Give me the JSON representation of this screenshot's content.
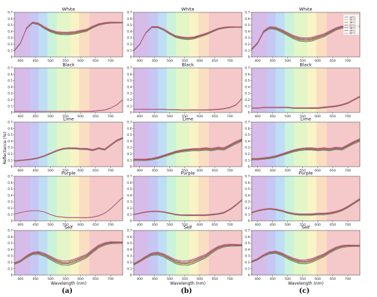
{
  "chart_data": {
    "type": "line",
    "ylabel": "Reflectance (%)",
    "xlabel": "Wavelength (nm)",
    "xlim": [
      380,
      740
    ],
    "ylim": [
      0,
      0.7
    ],
    "xticks": [
      400,
      450,
      500,
      550,
      600,
      650,
      700
    ],
    "xtick_labels": [
      "400",
      "450",
      "500",
      "550",
      "600",
      "650",
      "700"
    ],
    "yticks": [
      0,
      0.1,
      0.2,
      0.3,
      0.4,
      0.5,
      0.6,
      0.7
    ],
    "ytick_labels": [
      "0",
      "0.1",
      "0.2",
      "0.3",
      "0.4",
      "0.5",
      "0.6",
      "0.7"
    ],
    "legend": {
      "placement": "top-right of column (c) White panel",
      "entries": [
        "34°C",
        "35°C",
        "36°C",
        "37°C",
        "38°C",
        "39°C",
        "40°C"
      ]
    },
    "series_colors": [
      "#1f77b4",
      "#ff7f0e",
      "#2ca02c",
      "#d62728",
      "#9467bd",
      "#8c564b",
      "#e377c2"
    ],
    "column_captions": [
      "(a)",
      "(b)",
      "(c)"
    ],
    "panel_titles": [
      "White",
      "Black",
      "Lime",
      "Purple",
      "Self"
    ],
    "x_samples": [
      380,
      400,
      420,
      440,
      460,
      480,
      500,
      520,
      540,
      560,
      580,
      600,
      620,
      640,
      660,
      680,
      700,
      720,
      740
    ],
    "columns": [
      {
        "caption": "(a)",
        "panels": [
          {
            "title": "White",
            "base": [
              0.1,
              0.22,
              0.45,
              0.54,
              0.52,
              0.46,
              0.41,
              0.38,
              0.37,
              0.37,
              0.38,
              0.4,
              0.42,
              0.47,
              0.51,
              0.53,
              0.54,
              0.54,
              0.54
            ],
            "spread": 0.025,
            "mode": "dip"
          },
          {
            "title": "Black",
            "base": [
              0.02,
              0.02,
              0.02,
              0.02,
              0.02,
              0.02,
              0.02,
              0.02,
              0.02,
              0.02,
              0.02,
              0.02,
              0.02,
              0.02,
              0.03,
              0.04,
              0.07,
              0.12,
              0.2
            ],
            "spread": 0.004,
            "mode": "flat"
          },
          {
            "title": "Lime",
            "base": [
              0.09,
              0.1,
              0.11,
              0.12,
              0.14,
              0.17,
              0.21,
              0.25,
              0.28,
              0.29,
              0.29,
              0.28,
              0.28,
              0.26,
              0.29,
              0.27,
              0.34,
              0.41,
              0.45
            ],
            "spread": 0.012,
            "mode": "flat"
          },
          {
            "title": "Purple",
            "base": [
              0.11,
              0.13,
              0.15,
              0.16,
              0.16,
              0.14,
              0.1,
              0.07,
              0.06,
              0.05,
              0.05,
              0.05,
              0.05,
              0.06,
              0.08,
              0.12,
              0.19,
              0.28,
              0.37
            ],
            "spread": 0.004,
            "mode": "flat"
          },
          {
            "title": "Self",
            "base": [
              0.18,
              0.22,
              0.29,
              0.34,
              0.35,
              0.32,
              0.27,
              0.22,
              0.19,
              0.19,
              0.22,
              0.26,
              0.3,
              0.38,
              0.45,
              0.49,
              0.51,
              0.51,
              0.51
            ],
            "spread": 0.04,
            "mode": "dip"
          }
        ]
      },
      {
        "caption": "(b)",
        "panels": [
          {
            "title": "White",
            "base": [
              0.1,
              0.2,
              0.38,
              0.47,
              0.47,
              0.43,
              0.37,
              0.32,
              0.3,
              0.29,
              0.3,
              0.33,
              0.36,
              0.4,
              0.44,
              0.46,
              0.47,
              0.47,
              0.47
            ],
            "spread": 0.02,
            "mode": "dip"
          },
          {
            "title": "Black",
            "base": [
              0.05,
              0.05,
              0.05,
              0.05,
              0.05,
              0.05,
              0.045,
              0.045,
              0.04,
              0.04,
              0.04,
              0.04,
              0.04,
              0.045,
              0.05,
              0.06,
              0.08,
              0.12,
              0.22
            ],
            "spread": 0.006,
            "mode": "flat"
          },
          {
            "title": "Lime",
            "base": [
              0.11,
              0.11,
              0.11,
              0.12,
              0.14,
              0.17,
              0.2,
              0.23,
              0.25,
              0.26,
              0.27,
              0.27,
              0.28,
              0.27,
              0.29,
              0.28,
              0.33,
              0.38,
              0.42
            ],
            "spread": 0.022,
            "mode": "flat"
          },
          {
            "title": "Purple",
            "base": [
              0.1,
              0.12,
              0.14,
              0.15,
              0.15,
              0.14,
              0.12,
              0.1,
              0.09,
              0.09,
              0.09,
              0.09,
              0.09,
              0.1,
              0.11,
              0.13,
              0.18,
              0.25,
              0.33
            ],
            "spread": 0.01,
            "mode": "flat"
          },
          {
            "title": "Self",
            "base": [
              0.17,
              0.22,
              0.28,
              0.33,
              0.34,
              0.31,
              0.26,
              0.21,
              0.19,
              0.19,
              0.22,
              0.26,
              0.3,
              0.37,
              0.43,
              0.46,
              0.47,
              0.47,
              0.47
            ],
            "spread": 0.04,
            "mode": "dip"
          }
        ]
      },
      {
        "caption": "(c)",
        "panels": [
          {
            "title": "White",
            "base": [
              0.12,
              0.22,
              0.4,
              0.46,
              0.45,
              0.41,
              0.36,
              0.31,
              0.28,
              0.27,
              0.28,
              0.31,
              0.34,
              0.39,
              0.44,
              0.47,
              0.48,
              0.48,
              0.48
            ],
            "spread": 0.035,
            "mode": "dip"
          },
          {
            "title": "Black",
            "base": [
              0.07,
              0.07,
              0.08,
              0.08,
              0.08,
              0.08,
              0.08,
              0.07,
              0.07,
              0.07,
              0.07,
              0.07,
              0.08,
              0.09,
              0.1,
              0.12,
              0.15,
              0.2,
              0.25
            ],
            "spread": 0.01,
            "mode": "flat"
          },
          {
            "title": "Lime",
            "base": [
              0.12,
              0.12,
              0.13,
              0.14,
              0.16,
              0.19,
              0.22,
              0.25,
              0.27,
              0.28,
              0.28,
              0.27,
              0.28,
              0.27,
              0.29,
              0.28,
              0.33,
              0.38,
              0.42
            ],
            "spread": 0.022,
            "mode": "flat"
          },
          {
            "title": "Purple",
            "base": [
              0.13,
              0.16,
              0.18,
              0.19,
              0.18,
              0.16,
              0.13,
              0.11,
              0.1,
              0.1,
              0.1,
              0.11,
              0.11,
              0.12,
              0.14,
              0.17,
              0.22,
              0.28,
              0.34
            ],
            "spread": 0.015,
            "mode": "flat"
          },
          {
            "title": "Self",
            "base": [
              0.21,
              0.25,
              0.31,
              0.35,
              0.36,
              0.33,
              0.28,
              0.24,
              0.21,
              0.21,
              0.23,
              0.27,
              0.31,
              0.37,
              0.42,
              0.45,
              0.46,
              0.46,
              0.46
            ],
            "spread": 0.035,
            "mode": "dip"
          }
        ]
      }
    ]
  },
  "spectrum_bands": [
    {
      "from": 380,
      "to": 430,
      "color": "#c9a6e3"
    },
    {
      "from": 430,
      "to": 460,
      "color": "#b3b6ef"
    },
    {
      "from": 460,
      "to": 490,
      "color": "#a9d3f2"
    },
    {
      "from": 490,
      "to": 520,
      "color": "#b9efd0"
    },
    {
      "from": 520,
      "to": 565,
      "color": "#d8f3b5"
    },
    {
      "from": 565,
      "to": 595,
      "color": "#f7f0b1"
    },
    {
      "from": 595,
      "to": 630,
      "color": "#f8d3ad"
    },
    {
      "from": 630,
      "to": 740,
      "color": "#f1b7b7"
    }
  ]
}
